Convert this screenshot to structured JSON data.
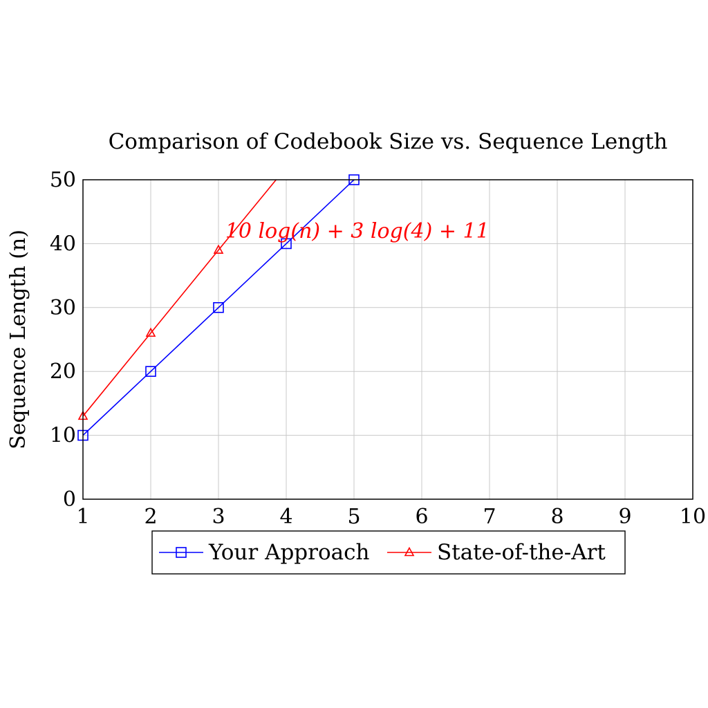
{
  "chart_data": {
    "type": "line",
    "title": "Comparison of Codebook Size vs. Sequence Length",
    "xlabel": "",
    "ylabel": "Sequence Length (n)",
    "xlim": [
      1,
      10
    ],
    "ylim": [
      0,
      50
    ],
    "xticks": [
      "1",
      "2",
      "3",
      "4",
      "5",
      "6",
      "7",
      "8",
      "9",
      "10"
    ],
    "yticks": [
      "0",
      "10",
      "20",
      "30",
      "40",
      "50"
    ],
    "grid": true,
    "legend_position": "bottom-center",
    "series": [
      {
        "name": "Your Approach",
        "color": "#0000ff",
        "marker": "square",
        "x": [
          1,
          2,
          3,
          4,
          5
        ],
        "y": [
          10,
          20,
          30,
          40,
          50
        ]
      },
      {
        "name": "State-of-the-Art",
        "color": "#ff0000",
        "marker": "triangle",
        "x": [
          1,
          2,
          3,
          3.85
        ],
        "y": [
          13,
          26,
          39,
          50
        ],
        "marker_indices": [
          0,
          1,
          2
        ]
      }
    ],
    "annotations": [
      {
        "text": "10 log(n) + 3 log(4) + 11",
        "x": 3.1,
        "y": 42,
        "color": "#ff0000"
      }
    ]
  }
}
